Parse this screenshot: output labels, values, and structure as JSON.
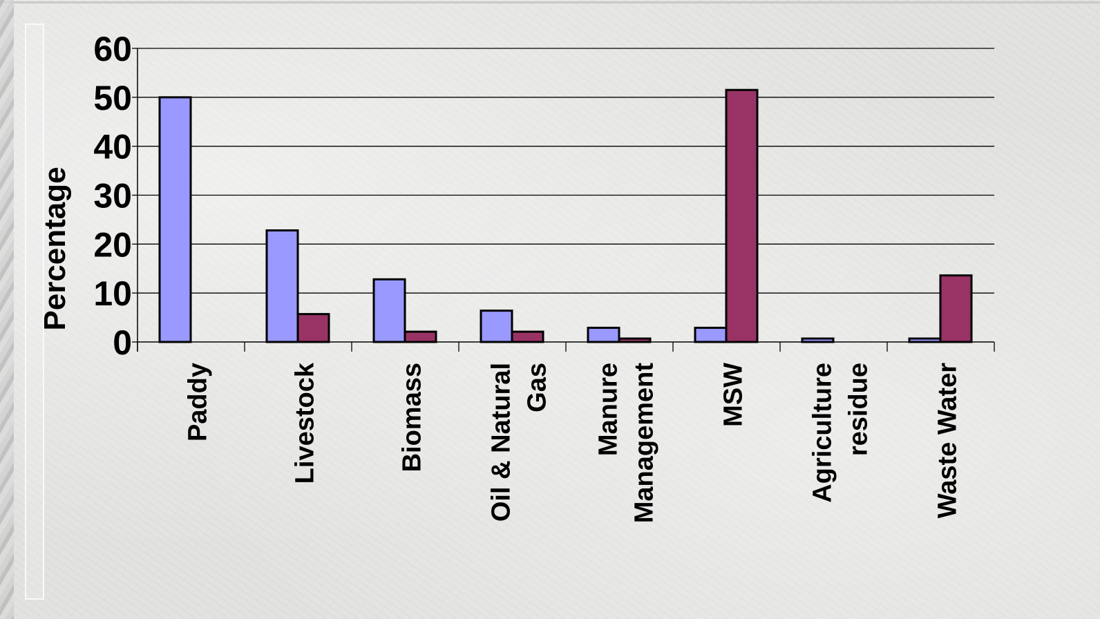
{
  "chart_data": {
    "type": "bar",
    "title": "",
    "xlabel": "",
    "ylabel": "Percentage",
    "ylim": [
      0,
      60
    ],
    "yticks": [
      0,
      10,
      20,
      30,
      40,
      50,
      60
    ],
    "grid": true,
    "categories": [
      [
        "Paddy"
      ],
      [
        "Livestock"
      ],
      [
        "Biomass"
      ],
      [
        "Oil & Natural",
        "Gas"
      ],
      [
        "Manure",
        "Management"
      ],
      [
        "MSW"
      ],
      [
        "Agriculture",
        "residue"
      ],
      [
        "Waste Water"
      ]
    ],
    "series": [
      {
        "color": "#9999ff",
        "values": [
          50,
          22.8,
          12.8,
          6.4,
          2.9,
          2.9,
          0.7,
          0.7
        ]
      },
      {
        "color": "#993366",
        "values": [
          0,
          5.7,
          2.1,
          2.1,
          0.7,
          51.5,
          0,
          13.6
        ]
      }
    ]
  }
}
